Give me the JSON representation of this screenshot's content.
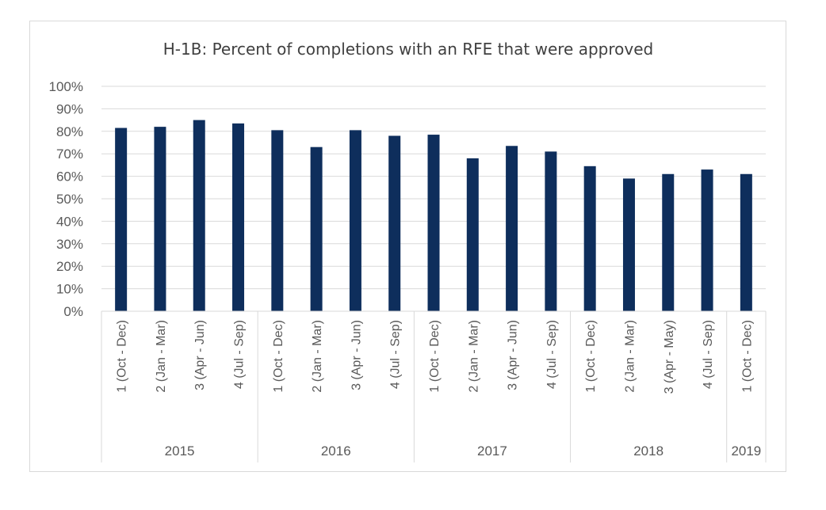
{
  "chart_data": {
    "type": "bar",
    "title": "H-1B: Percent of completions with an RFE that were approved",
    "xlabel": "",
    "ylabel": "",
    "ylim": [
      0,
      100
    ],
    "y_ticks": [
      "0%",
      "10%",
      "20%",
      "30%",
      "40%",
      "50%",
      "60%",
      "70%",
      "80%",
      "90%",
      "100%"
    ],
    "grid": true,
    "legend": "none",
    "bar_color": "#0e2e5c",
    "categories": [
      "1 (Oct - Dec)",
      "2 (Jan - Mar)",
      "3 (Apr - Jun)",
      "4 (Jul - Sep)",
      "1 (Oct - Dec)",
      "2 (Jan - Mar)",
      "3 (Apr - Jun)",
      "4 (Jul - Sep)",
      "1 (Oct - Dec)",
      "2 (Jan - Mar)",
      "3 (Apr - Jun)",
      "4 (Jul - Sep)",
      "1 (Oct - Dec)",
      "2 (Jan - Mar)",
      "3 (Apr - May)",
      "4 (Jul - Sep)",
      "1 (Oct - Dec)"
    ],
    "groups": [
      {
        "label": "2015",
        "count": 4
      },
      {
        "label": "2016",
        "count": 4
      },
      {
        "label": "2017",
        "count": 4
      },
      {
        "label": "2018",
        "count": 4
      },
      {
        "label": "2019",
        "count": 1
      }
    ],
    "values": [
      81.5,
      82,
      85,
      83.5,
      80.5,
      73,
      80.5,
      78,
      78.5,
      68,
      73.5,
      71,
      64.5,
      59,
      61,
      63,
      61
    ]
  }
}
